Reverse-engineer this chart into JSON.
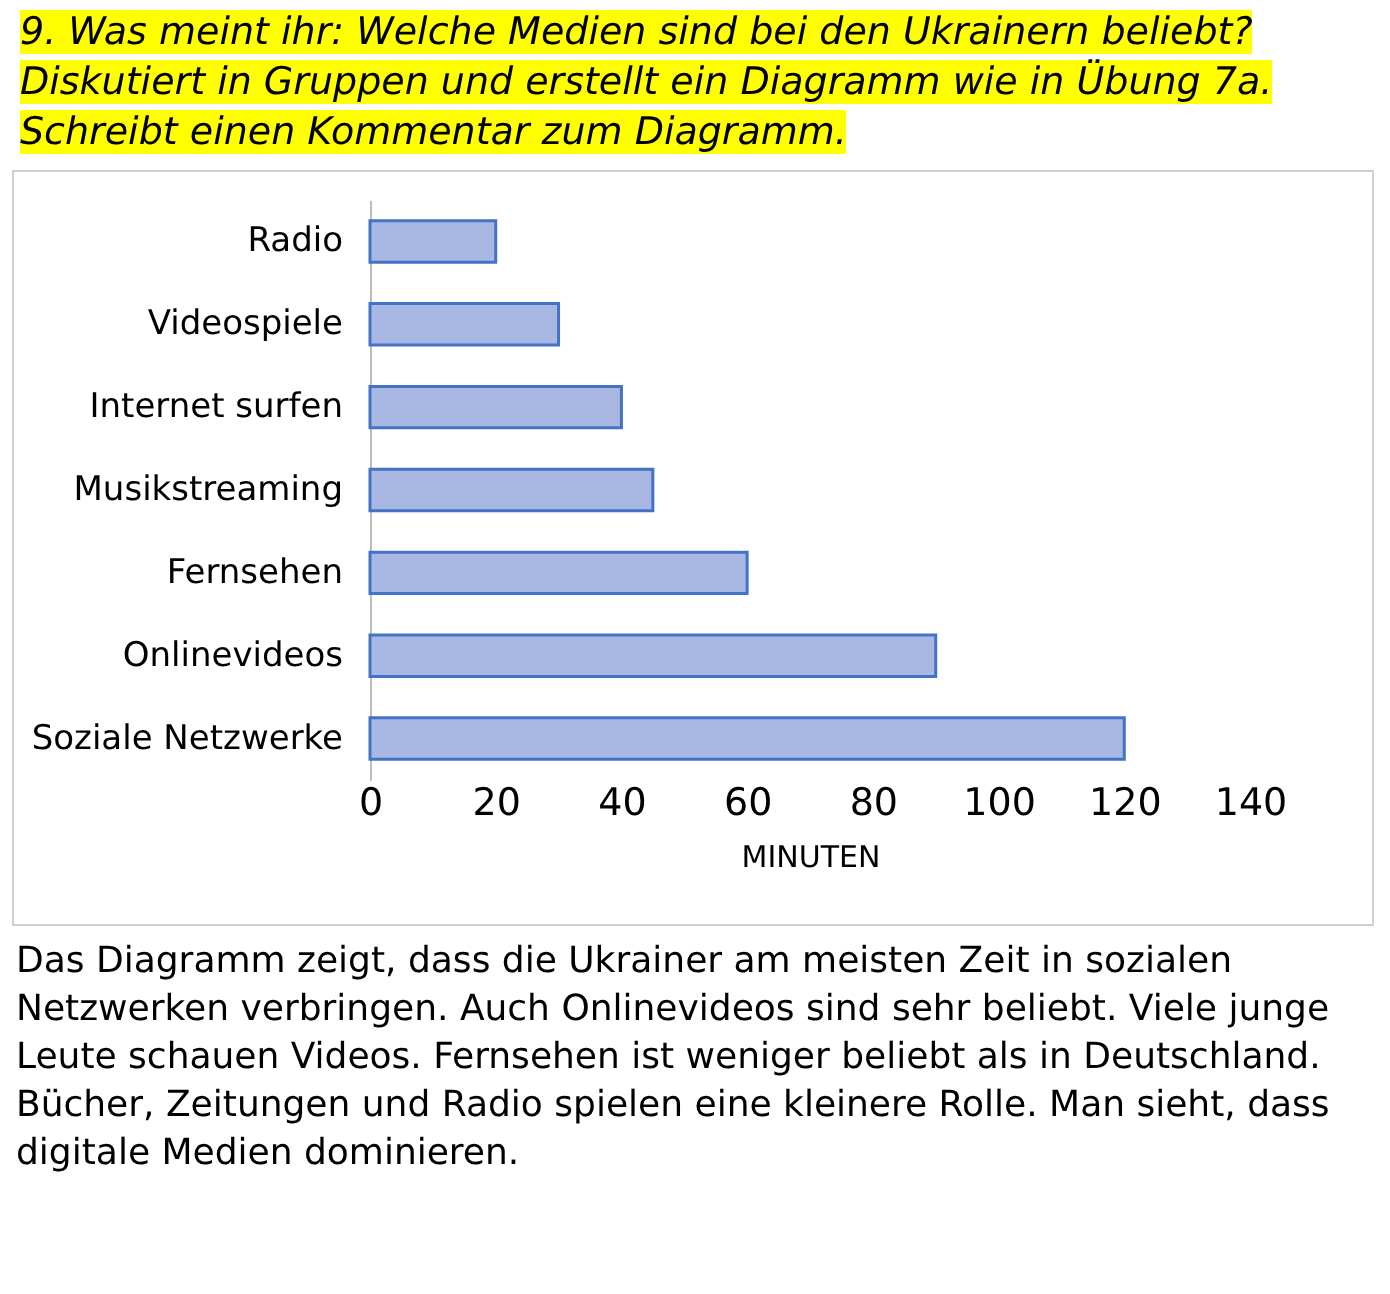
{
  "chart_data": {
    "type": "bar",
    "orientation": "horizontal",
    "title": "9. Was meint ihr: Welche Medien sind bei den Ukrainern beliebt?\nDiskutiert in Gruppen und erstellt ein Diagramm wie in Übung 7a.\nSchreibt einen Kommentar zum Diagramm.",
    "categories": [
      "Radio",
      "Videospiele",
      "Internet surfen",
      "Musikstreaming",
      "Fernsehen",
      "Onlinevideos",
      "Soziale Netzwerke"
    ],
    "values": [
      20,
      30,
      40,
      45,
      60,
      90,
      120
    ],
    "color": "#a9b8e3",
    "xlim": [
      0,
      140
    ],
    "xticks": [
      0,
      20,
      40,
      60,
      80,
      100,
      120,
      140
    ],
    "xlabel": "MINUTEN",
    "grid": false,
    "annotations": [
      "Das Diagramm zeigt, dass die Ukrainer am meisten Zeit in sozialen Netzwerken verbringen. Auch Onlinevideos sind sehr beliebt. Viele junge Leute schauen Videos. Fernsehen ist weniger beliebt als in Deutschland. Bücher, Zeitungen und Radio spielen eine kleinere Rolle. Man sieht, dass digitale Medien dominieren."
    ]
  }
}
